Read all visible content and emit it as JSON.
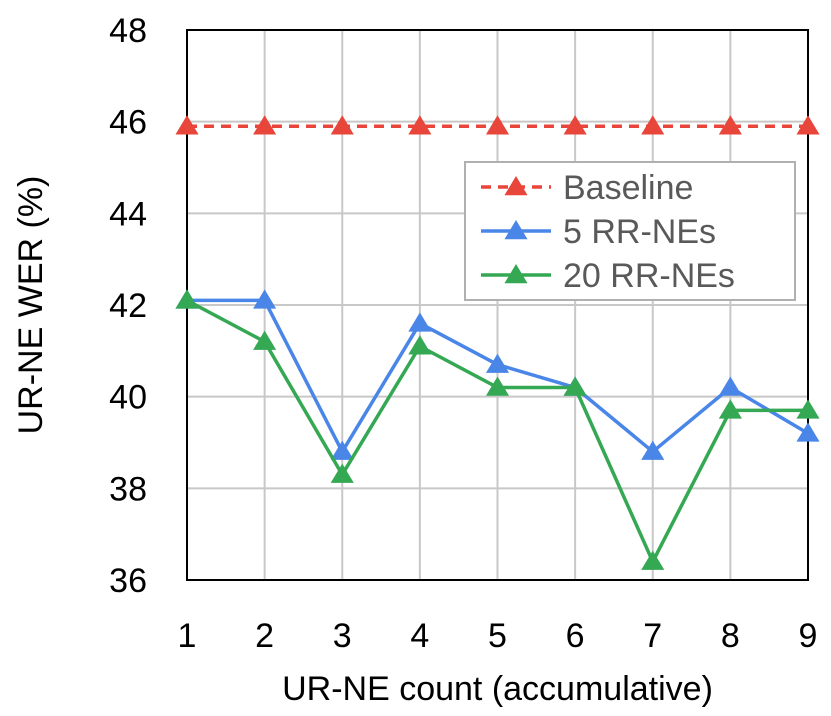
{
  "chart_data": {
    "type": "line",
    "title": "",
    "xlabel": "UR-NE count (accumulative)",
    "ylabel": "UR-NE WER (%)",
    "x": [
      1,
      2,
      3,
      4,
      5,
      6,
      7,
      8,
      9
    ],
    "ylim": [
      36,
      48
    ],
    "yticks": [
      36,
      38,
      40,
      42,
      44,
      46,
      48
    ],
    "grid": true,
    "legend_position": "right",
    "series": [
      {
        "name": "Baseline",
        "color": "#e8463a",
        "dashed": true,
        "marker": "triangle",
        "values": [
          45.9,
          45.9,
          45.9,
          45.9,
          45.9,
          45.9,
          45.9,
          45.9,
          45.9
        ]
      },
      {
        "name": "5 RR-NEs",
        "color": "#4a86e8",
        "dashed": false,
        "marker": "triangle",
        "values": [
          42.1,
          42.1,
          38.8,
          41.6,
          40.7,
          40.2,
          38.8,
          40.2,
          39.2
        ]
      },
      {
        "name": "20 RR-NEs",
        "color": "#34a853",
        "dashed": false,
        "marker": "triangle",
        "values": [
          42.1,
          41.2,
          38.3,
          41.1,
          40.2,
          40.2,
          36.4,
          39.7,
          39.7
        ]
      }
    ]
  }
}
